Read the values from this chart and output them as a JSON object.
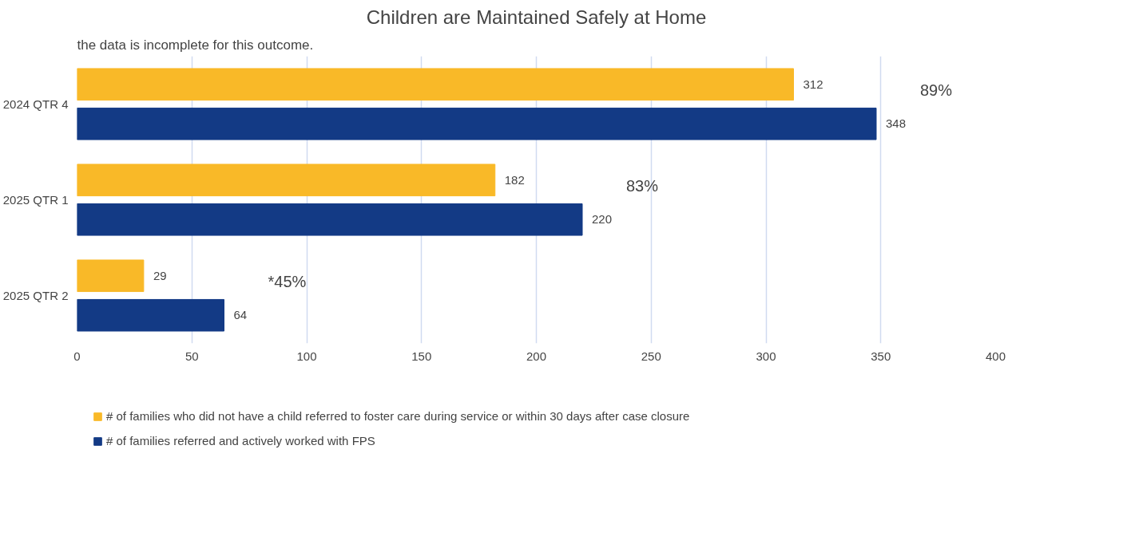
{
  "chart_data": {
    "type": "bar",
    "orientation": "horizontal",
    "title": "Children are Maintained Safely at Home",
    "categories": [
      "2024 QTR 4",
      "2025 QTR 1",
      "2025 QTR 2"
    ],
    "series": [
      {
        "name": "# of families who did not have a child referred to foster care during service or within 30 days after case closure",
        "color": "#f9b928",
        "values": [
          312,
          182,
          29
        ]
      },
      {
        "name": "# of families referred and actively worked with FPS",
        "color": "#133a85",
        "values": [
          348,
          220,
          64
        ]
      }
    ],
    "xlim": [
      0,
      400
    ],
    "xticks": [
      0,
      50,
      100,
      150,
      200,
      250,
      300,
      350,
      400
    ],
    "grid": "x",
    "legend": "bottom",
    "data_labels": true,
    "annotations": [
      "the data is incomplete for this outcome.",
      "89%",
      "83%",
      "*45%"
    ]
  }
}
